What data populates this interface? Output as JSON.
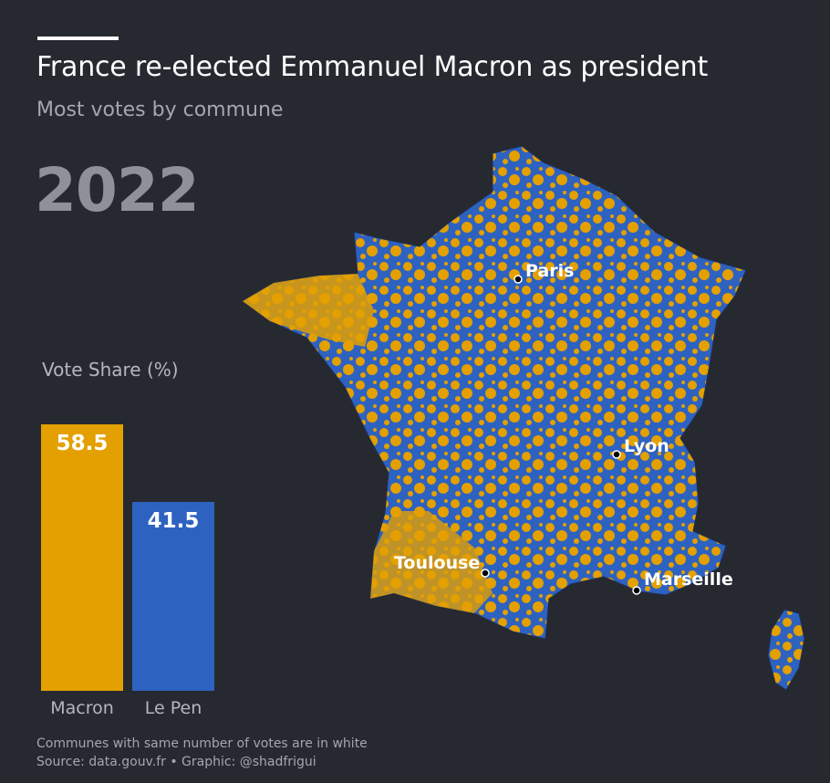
{
  "title": "France re-elected Emmanuel Macron as president",
  "subtitle": "Most votes by commune",
  "year": "2022",
  "colors": {
    "background": "#262930",
    "macron": "#e3a000",
    "le_pen": "#2e62c0",
    "tie": "#ffffff"
  },
  "chart_data": {
    "type": "bar",
    "title": "Vote Share (%)",
    "categories": [
      "Macron",
      "Le Pen"
    ],
    "values": [
      58.5,
      41.5
    ],
    "value_labels": [
      "58.5",
      "41.5"
    ],
    "colors": [
      "#e3a000",
      "#2e62c0"
    ],
    "ylim": [
      0,
      60
    ]
  },
  "map": {
    "legend_note": "Communes with same number of votes are in white",
    "cities": [
      "Paris",
      "Lyon",
      "Toulouse",
      "Marseille"
    ]
  },
  "source": "Source: data.gouv.fr • Graphic: @shadfrigui"
}
